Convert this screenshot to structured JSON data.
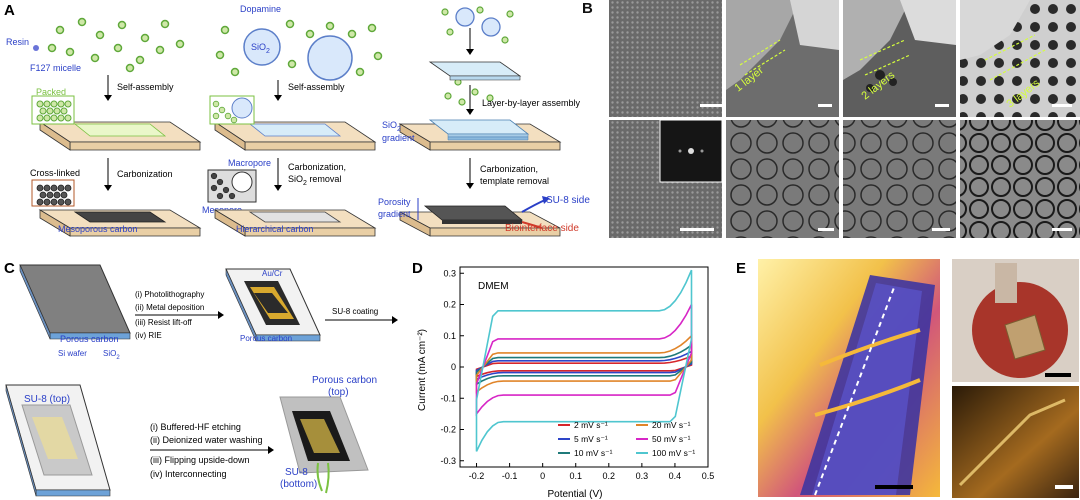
{
  "panels": {
    "A": {
      "label": "A",
      "col1": {
        "resin": "Resin",
        "micelle": "F127 micelle",
        "packed": "Packed",
        "step1": "Self-assembly",
        "crosslinked": "Cross-linked",
        "step2": "Carbonization",
        "product": "Mesoporous carbon"
      },
      "col2": {
        "dopamine": "Dopamine",
        "sio2": "SiO",
        "sio2_sub": "2",
        "step1": "Self-assembly",
        "macropore": "Macropore",
        "mesopore": "Mesopore",
        "step2_l1": "Carbonization,",
        "step2_l2": "SiO",
        "step2_l2_sub": "2",
        "step2_l2_tail": " removal",
        "product": "Hierarchical carbon"
      },
      "col3": {
        "step1": "Layer-by-layer assembly",
        "sio2g_l1": "SiO",
        "sio2g_sub": "2",
        "sio2g_l2": "gradient",
        "step2_l1": "Carbonization,",
        "step2_l2": "template removal",
        "porosity_l1": "Porosity",
        "porosity_l2": "gradient",
        "su8side": "SU-8 side",
        "biointerface": "Biointerface side"
      }
    },
    "B": {
      "label": "B",
      "layer_tags": [
        "1 layer",
        "2 layers",
        "3 layers"
      ]
    },
    "C": {
      "label": "C",
      "porous_carbon": "Porous carbon",
      "si_wafer": "Si wafer",
      "sio2": "SiO",
      "sio2_sub": "2",
      "steps_top": [
        "(i) Photolithography",
        "(ii) Metal deposition",
        "(iii) Resist lift-off",
        "(iv) RIE"
      ],
      "aucr": "Au/Cr",
      "porous_carbon2": "Porous carbon",
      "su8_coating": "SU-8 coating",
      "su8_top": "SU-8 (top)",
      "steps_bottom": [
        "(i) Buffered-HF etching",
        "(ii) Deionized water washing",
        "(iii) Flipping upside-down",
        "(iv) Interconnecting"
      ],
      "pc_top_l1": "Porous carbon",
      "pc_top_l2": "(top)",
      "su8_bottom_l1": "SU-8",
      "su8_bottom_l2": "(bottom)"
    },
    "D": {
      "label": "D",
      "annotation": "DMEM"
    },
    "E": {
      "label": "E"
    }
  },
  "chart_data": {
    "type": "line",
    "title": "",
    "annotation": "DMEM",
    "xlabel": "Potential (V)",
    "ylabel": "Current (mA cm⁻²)",
    "xlim": [
      -0.25,
      0.5
    ],
    "ylim": [
      -0.32,
      0.32
    ],
    "xticks": [
      "-0.2",
      "-0.1",
      "0",
      "0.1",
      "0.2",
      "0.3",
      "0.4",
      "0.5"
    ],
    "yticks": [
      "0.3",
      "0.2",
      "0.1",
      "0",
      "-0.1",
      "-0.2",
      "-0.3"
    ],
    "grid": false,
    "legend_placement": "bottom-right",
    "x_range": [
      -0.2,
      0.45
    ],
    "series": [
      {
        "name": "2 mV s⁻¹",
        "color": "#d6262b",
        "upper": 0.012,
        "lower": -0.012,
        "tail_up": 0.035,
        "tail_dn": -0.03
      },
      {
        "name": "5 mV s⁻¹",
        "color": "#2e45c8",
        "upper": 0.02,
        "lower": -0.018,
        "tail_up": 0.05,
        "tail_dn": -0.04
      },
      {
        "name": "10 mV s⁻¹",
        "color": "#1f7a7a",
        "upper": 0.03,
        "lower": -0.028,
        "tail_up": 0.07,
        "tail_dn": -0.055
      },
      {
        "name": "20 mV s⁻¹",
        "color": "#e0852a",
        "upper": 0.045,
        "lower": -0.045,
        "tail_up": 0.1,
        "tail_dn": -0.08
      },
      {
        "name": "50 mV s⁻¹",
        "color": "#d726c6",
        "upper": 0.09,
        "lower": -0.09,
        "tail_up": 0.2,
        "tail_dn": -0.15
      },
      {
        "name": "100 mV s⁻¹",
        "color": "#4fc6cf",
        "upper": 0.18,
        "lower": -0.175,
        "tail_up": 0.31,
        "tail_dn": -0.27
      }
    ]
  }
}
